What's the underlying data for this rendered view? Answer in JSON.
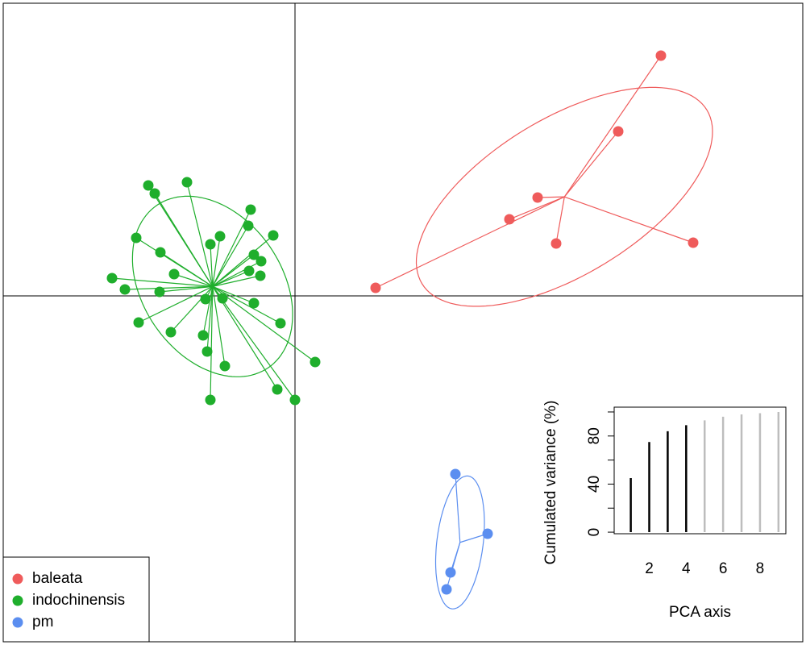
{
  "chart_data": [
    {
      "type": "scatter",
      "legend": "bottom-left",
      "xlim": [
        -3.62,
        6.3
      ],
      "ylim": [
        -4.29,
        3.63
      ],
      "origin_lines": true,
      "series": [
        {
          "name": "baleata",
          "color": "#ef5b5b",
          "x": [
            4.54,
            4.01,
            3.01,
            2.66,
            3.24,
            4.94,
            1.0
          ],
          "y": [
            2.98,
            2.04,
            1.22,
            0.95,
            0.65,
            0.66,
            0.1
          ]
        },
        {
          "name": "indochinensis",
          "color": "#1fae2c",
          "x": [
            -1.82,
            -1.74,
            -1.34,
            -0.55,
            -0.58,
            -1.97,
            -0.93,
            -1.05,
            -0.27,
            -1.67,
            -0.51,
            -0.42,
            -0.57,
            -0.43,
            -1.5,
            -2.27,
            -2.11,
            -1.68,
            -1.11,
            -0.9,
            -0.51,
            -1.94,
            -0.18,
            -1.54,
            -1.14,
            -1.09,
            0.25,
            -0.87,
            -0.22,
            -1.05,
            0.0
          ],
          "y": [
            1.37,
            1.27,
            1.41,
            1.07,
            0.87,
            0.72,
            0.74,
            0.64,
            0.75,
            0.54,
            0.51,
            0.43,
            0.31,
            0.25,
            0.27,
            0.22,
            0.08,
            0.05,
            -0.04,
            -0.03,
            -0.09,
            -0.33,
            -0.34,
            -0.45,
            -0.49,
            -0.69,
            -0.82,
            -0.87,
            -1.16,
            -1.29,
            -1.29
          ]
        },
        {
          "name": "pm",
          "color": "#5b8ef0",
          "x": [
            1.99,
            2.39,
            1.93,
            1.88
          ],
          "y": [
            -2.21,
            -2.95,
            -3.43,
            -3.64
          ]
        }
      ]
    },
    {
      "type": "bar",
      "xlabel": "PCA axis",
      "ylabel": "Cumulated variance (%)",
      "x": [
        1,
        2,
        3,
        4,
        5,
        6,
        7,
        8,
        9
      ],
      "values": [
        45,
        75,
        84,
        89,
        93,
        96,
        98,
        99,
        100
      ],
      "colors": [
        "#000000",
        "#000000",
        "#000000",
        "#000000",
        "#bdbdbd",
        "#bdbdbd",
        "#bdbdbd",
        "#bdbdbd",
        "#bdbdbd"
      ],
      "xlim": [
        0.1,
        9.4
      ],
      "ylim": [
        -1.3,
        104
      ],
      "xticks": [
        2,
        4,
        6,
        8
      ],
      "yticks": [
        0,
        40,
        80
      ],
      "yminor": [
        20,
        60,
        100
      ]
    }
  ]
}
